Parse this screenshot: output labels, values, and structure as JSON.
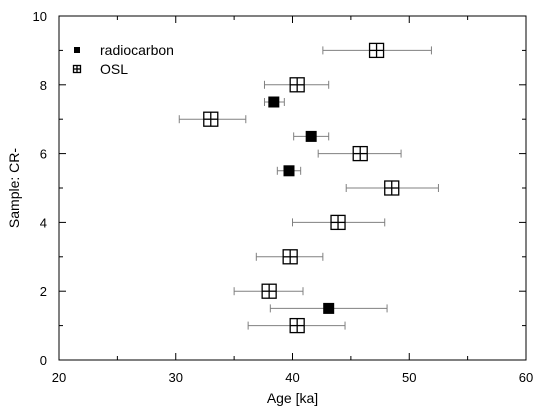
{
  "chart_data": {
    "type": "scatter",
    "title": "",
    "xlabel": "Age [ka]",
    "ylabel": "Sample: CR-",
    "xlim": [
      20,
      60
    ],
    "ylim": [
      0,
      10
    ],
    "xticks": [
      20,
      30,
      40,
      50,
      60
    ],
    "yticks": [
      0,
      2,
      4,
      6,
      8,
      10
    ],
    "legend_placement": "top-left",
    "grid": false,
    "series": [
      {
        "name": "radiocarbon",
        "marker": "filled-square",
        "color": "#000000",
        "points": [
          {
            "y": 7.5,
            "x": 38.4,
            "xerr_low": 37.6,
            "xerr_high": 39.3
          },
          {
            "y": 6.5,
            "x": 41.6,
            "xerr_low": 40.1,
            "xerr_high": 43.1
          },
          {
            "y": 5.5,
            "x": 39.7,
            "xerr_low": 38.7,
            "xerr_high": 40.7
          },
          {
            "y": 1.5,
            "x": 43.1,
            "xerr_low": 38.1,
            "xerr_high": 48.1
          }
        ]
      },
      {
        "name": "OSL",
        "marker": "open-square-cross",
        "color": "#000000",
        "points": [
          {
            "y": 9.0,
            "x": 47.2,
            "xerr_low": 42.6,
            "xerr_high": 51.9
          },
          {
            "y": 8.0,
            "x": 40.4,
            "xerr_low": 37.6,
            "xerr_high": 43.1
          },
          {
            "y": 7.0,
            "x": 33.0,
            "xerr_low": 30.3,
            "xerr_high": 36.0
          },
          {
            "y": 6.0,
            "x": 45.8,
            "xerr_low": 42.2,
            "xerr_high": 49.3
          },
          {
            "y": 5.0,
            "x": 48.5,
            "xerr_low": 44.6,
            "xerr_high": 52.5
          },
          {
            "y": 4.0,
            "x": 43.9,
            "xerr_low": 40.0,
            "xerr_high": 47.9
          },
          {
            "y": 3.0,
            "x": 39.8,
            "xerr_low": 36.9,
            "xerr_high": 42.6
          },
          {
            "y": 2.0,
            "x": 38.0,
            "xerr_low": 35.0,
            "xerr_high": 40.9
          },
          {
            "y": 1.0,
            "x": 40.4,
            "xerr_low": 36.2,
            "xerr_high": 44.5
          }
        ]
      }
    ]
  },
  "colors": {
    "errorbar": "#808080",
    "axis": "#000000"
  }
}
